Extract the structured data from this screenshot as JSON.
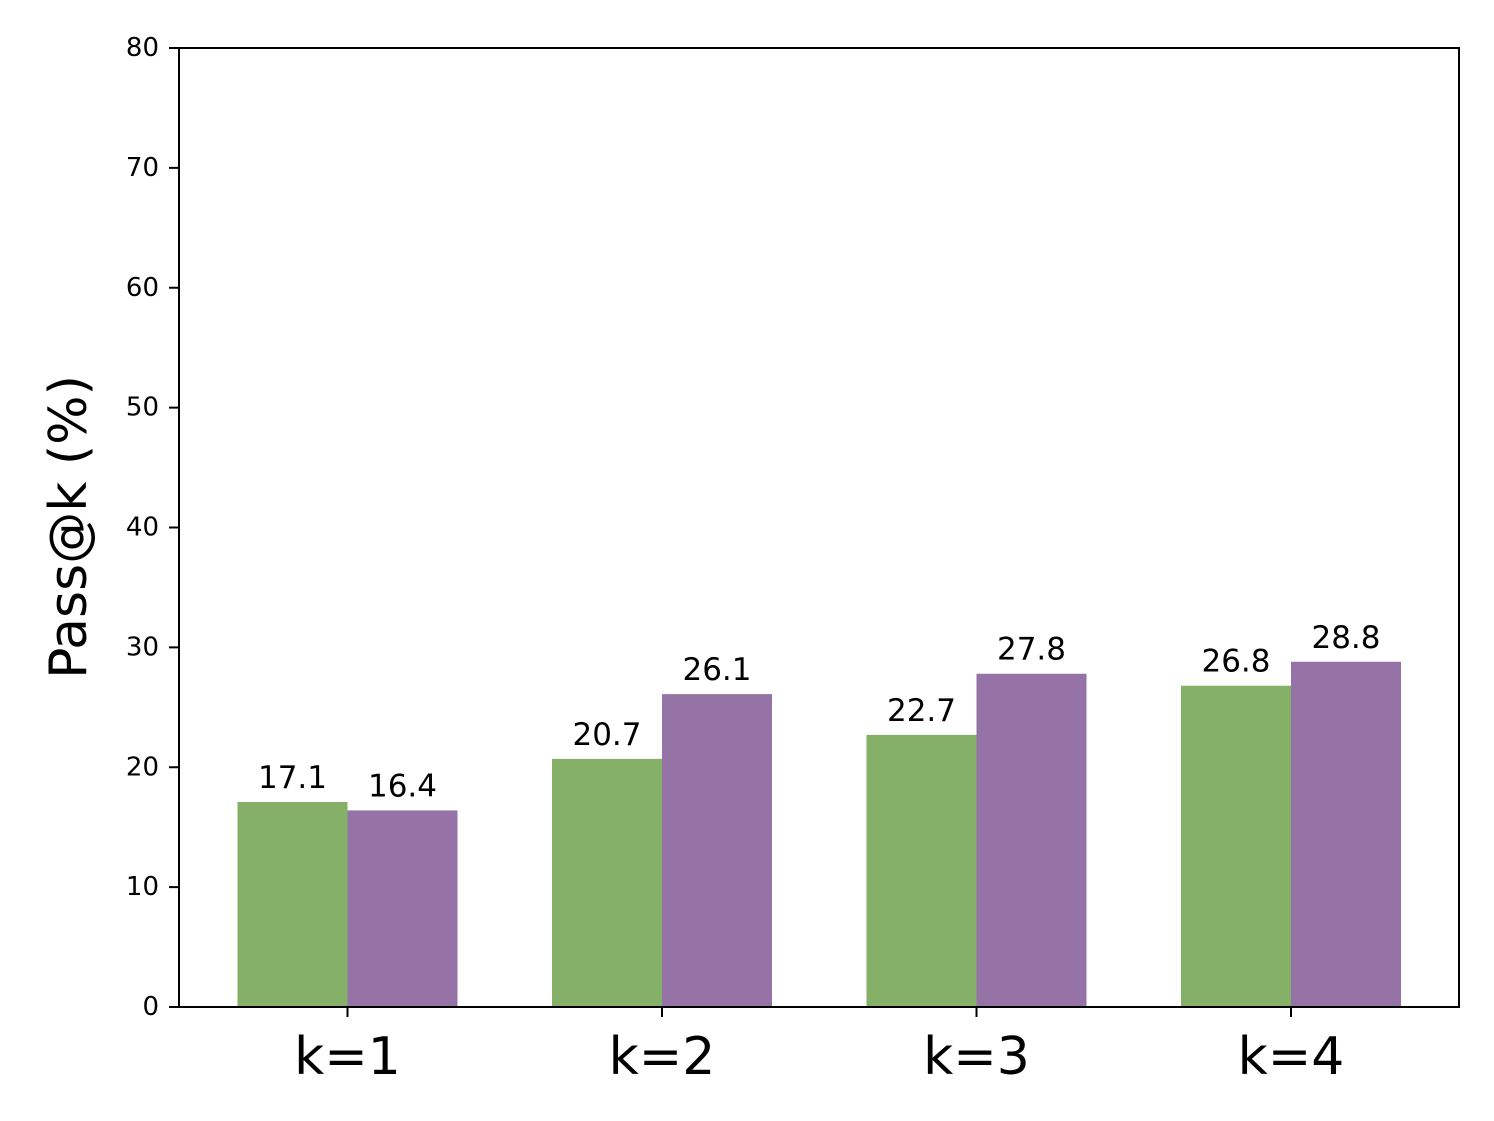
{
  "chart_data": {
    "type": "bar",
    "title": "",
    "xlabel": "",
    "ylabel": "Pass@k (%)",
    "categories": [
      "k=1",
      "k=2",
      "k=3",
      "k=4"
    ],
    "series": [
      {
        "values": [
          17.1,
          20.7,
          22.7,
          26.8
        ],
        "color": "#84b067"
      },
      {
        "values": [
          16.4,
          26.1,
          27.8,
          28.8
        ],
        "color": "#9673a6"
      }
    ],
    "ylim": [
      0,
      80
    ],
    "yticks": [
      0,
      10,
      20,
      30,
      40,
      50,
      60,
      70,
      80
    ],
    "grid": false,
    "legend": "none"
  }
}
